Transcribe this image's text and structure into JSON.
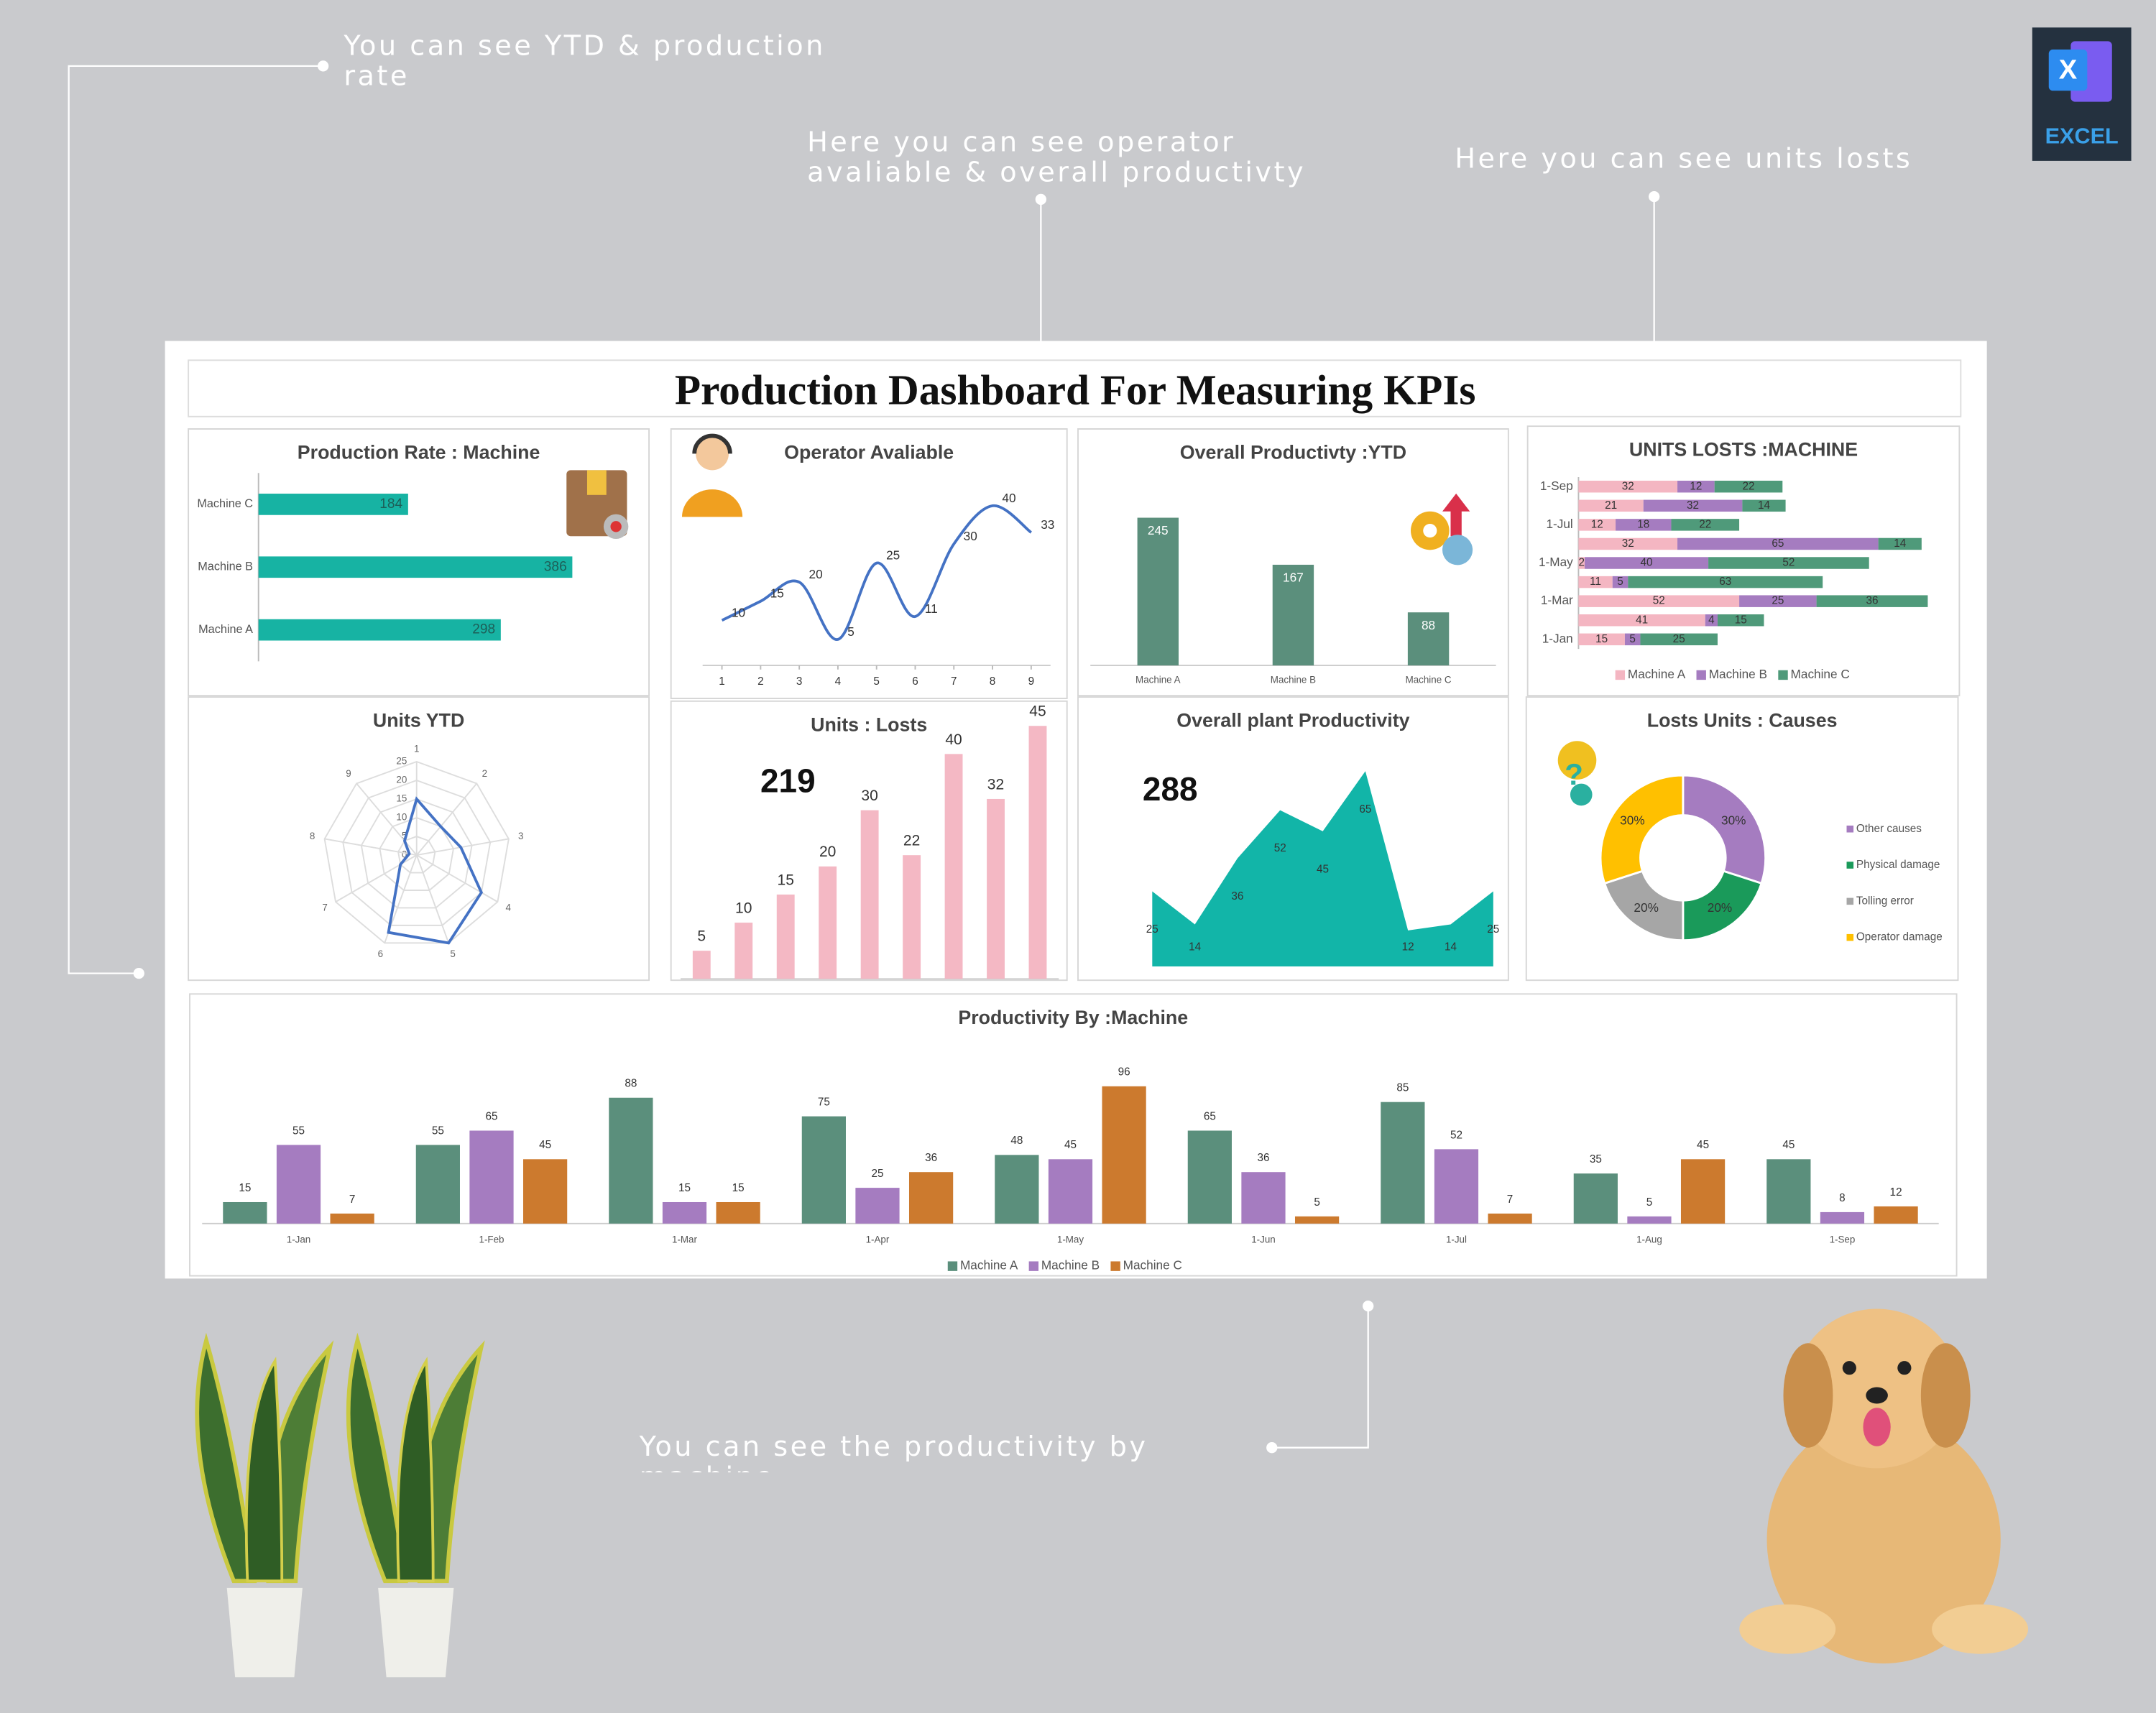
{
  "annotations": [
    "You can see YTD & production rate",
    "Here you can see operator avaliable & overall productivty",
    "Here you can see units losts",
    "You can see the productivity by machine"
  ],
  "logo": {
    "letter": "X",
    "label": "EXCEL"
  },
  "title": "Production Dashboard For Measuring KPIs",
  "chart_data": [
    {
      "type": "bar",
      "orientation": "horizontal",
      "title": "Production Rate : Machine",
      "categories": [
        "Machine C",
        "Machine B",
        "Machine A"
      ],
      "values": [
        184,
        386,
        298
      ],
      "color": "#17b3a3",
      "xlim": [
        0,
        460
      ]
    },
    {
      "type": "line",
      "title": "Operator Avaliable",
      "x": [
        1,
        2,
        3,
        4,
        5,
        6,
        7,
        8,
        9
      ],
      "values": [
        10,
        15,
        20,
        5,
        25,
        11,
        30,
        40,
        33
      ],
      "color": "#4472c4",
      "xlim": [
        0.5,
        9.5
      ],
      "xticks": [
        1,
        2,
        3,
        4,
        5,
        6,
        7,
        8,
        9
      ],
      "ylim": [
        0,
        45
      ]
    },
    {
      "type": "bar",
      "title": "Overall Productivty :YTD",
      "categories": [
        "Machine A",
        "Machine B",
        "Machine C"
      ],
      "values": [
        245,
        167,
        88
      ],
      "color": "#5b8f7c",
      "ylim": [
        0,
        260
      ]
    },
    {
      "type": "bar",
      "orientation": "horizontal",
      "stacked": true,
      "title": "UNITS LOSTS :MACHINE",
      "categories": [
        "1-Sep",
        null,
        "1-Jul",
        null,
        "1-May",
        null,
        "1-Mar",
        null,
        "1-Jan"
      ],
      "series": [
        {
          "name": "Machine A",
          "color": "#f4b6c2",
          "values": [
            32,
            21,
            12,
            32,
            2,
            11,
            52,
            41,
            15
          ]
        },
        {
          "name": "Machine B",
          "color": "#a57cc0",
          "values": [
            12,
            32,
            18,
            65,
            40,
            5,
            25,
            4,
            5
          ]
        },
        {
          "name": "Machine C",
          "color": "#4f9a7a",
          "values": [
            22,
            14,
            22,
            14,
            52,
            63,
            36,
            15,
            25
          ]
        }
      ],
      "xlim": [
        0,
        121
      ],
      "legend": "bottom"
    },
    {
      "type": "radar",
      "title": "Units YTD",
      "categories": [
        1,
        2,
        3,
        4,
        5,
        6,
        7,
        8,
        9
      ],
      "values": [
        15,
        10,
        12,
        20,
        25,
        22,
        5,
        2,
        5
      ],
      "color": "#4472c4",
      "ylim": [
        0,
        25
      ],
      "yticks": [
        0,
        5,
        10,
        15,
        20,
        25
      ]
    },
    {
      "type": "bar",
      "title": "Units : Losts",
      "kpi": 219,
      "values": [
        5,
        10,
        15,
        20,
        30,
        22,
        40,
        32,
        45
      ],
      "color": "#f4b8c4",
      "ylim": [
        0,
        45
      ]
    },
    {
      "type": "area",
      "title": "Overall plant Productivity",
      "kpi": 288,
      "values": [
        25,
        14,
        36,
        52,
        45,
        65,
        12,
        14,
        25
      ],
      "color": "#12b5a8",
      "ylim": [
        0,
        70
      ]
    },
    {
      "type": "donut",
      "title": "Losts Units : Causes",
      "categories": [
        "Other causes",
        "Physical damage",
        "Tolling error",
        "Operator damage"
      ],
      "values": [
        30,
        20,
        20,
        30
      ],
      "value_labels": [
        "30%",
        "20%",
        "20%",
        "30%"
      ],
      "colors": [
        "#a57cc0",
        "#1a9a5a",
        "#a6a6a6",
        "#ffc000"
      ],
      "legend": "right"
    },
    {
      "type": "bar",
      "title": "Productivity By :Machine",
      "categories": [
        "1-Jan",
        "1-Feb",
        "1-Mar",
        "1-Apr",
        "1-May",
        "1-Jun",
        "1-Jul",
        "1-Aug",
        "1-Sep"
      ],
      "series": [
        {
          "name": "Machine A",
          "color": "#5b8f7c",
          "values": [
            15,
            55,
            88,
            75,
            48,
            65,
            85,
            35,
            45
          ]
        },
        {
          "name": "Machine B",
          "color": "#a57cc0",
          "values": [
            55,
            65,
            15,
            25,
            45,
            36,
            52,
            5,
            8
          ]
        },
        {
          "name": "Machine C",
          "color": "#cc7a2e",
          "values": [
            7,
            45,
            15,
            36,
            96,
            5,
            7,
            45,
            12
          ]
        }
      ],
      "ylim": [
        0,
        100
      ],
      "legend": "bottom"
    }
  ]
}
